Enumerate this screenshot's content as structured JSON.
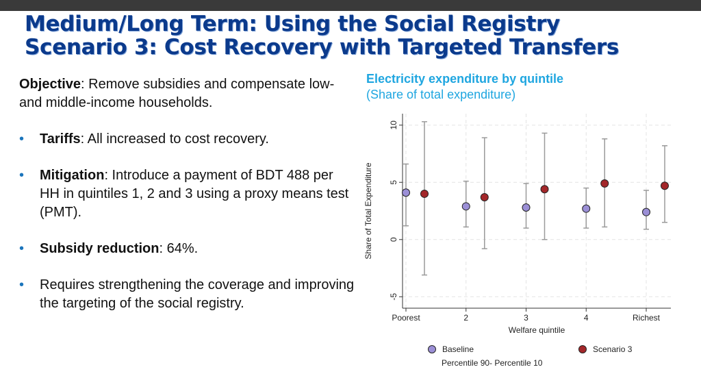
{
  "slide": {
    "title_line1": "Medium/Long Term: Using the Social Registry",
    "title_line2": "Scenario 3: Cost Recovery with Targeted Transfers",
    "objective_label": "Objective",
    "objective_text": ": Remove subsidies and compensate low- and middle-income households.",
    "bullets": [
      {
        "label": "Tariffs",
        "text": ": All increased to cost recovery."
      },
      {
        "label": "Mitigation",
        "text": ": Introduce a payment of BDT 488 per HH in quintiles 1, 2 and 3 using a proxy means test (PMT)."
      },
      {
        "label": "Subsidy reduction",
        "text": ": 64%."
      },
      {
        "label": "",
        "text": "Requires strengthening the coverage and improving the targeting of the social registry."
      }
    ],
    "bullet_color": "#1b75bc",
    "title_color": "#0b3a8c"
  },
  "chart_data": {
    "type": "scatter",
    "title": "Electricity expenditure by quintile",
    "subtitle": "(Share of total expenditure)",
    "xlabel": "Welfare quintile",
    "ylabel": "Share of Total Expenditure",
    "categories": [
      "Poorest",
      "2",
      "3",
      "4",
      "Richest"
    ],
    "ylim": [
      -6,
      11
    ],
    "yticks": [
      -5,
      0,
      5,
      10
    ],
    "grid": true,
    "legend_position": "bottom",
    "legend_note": "Percentile 90- Percentile 10",
    "series": [
      {
        "name": "Baseline",
        "color": "#9b8fd6",
        "values": [
          4.1,
          2.9,
          2.8,
          2.7,
          2.4
        ],
        "p10": [
          1.2,
          1.1,
          1.0,
          1.0,
          0.9
        ],
        "p90": [
          6.6,
          5.1,
          4.9,
          4.5,
          4.3
        ]
      },
      {
        "name": "Scenario 3",
        "color": "#a3272a",
        "values": [
          4.0,
          3.7,
          4.4,
          4.9,
          4.7
        ],
        "p10": [
          -3.1,
          -0.8,
          0.0,
          1.1,
          1.5
        ],
        "p90": [
          10.3,
          8.9,
          9.3,
          8.8,
          8.2
        ]
      }
    ]
  }
}
